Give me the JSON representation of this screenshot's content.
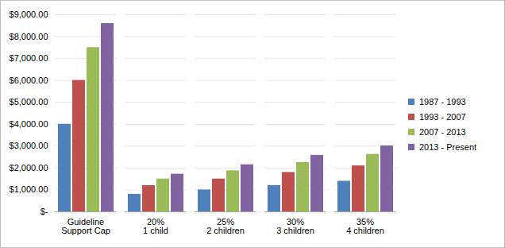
{
  "chart_data": {
    "type": "bar",
    "categories": [
      "Guideline\nSupport Cap",
      "20%\n1 child",
      "25%\n2 children",
      "30%\n3 children",
      "35%\n4 children"
    ],
    "series": [
      {
        "name": "1987 - 1993",
        "color": "#4f81bd",
        "values": [
          4000,
          800,
          1000,
          1200,
          1400
        ]
      },
      {
        "name": "1993 - 2007",
        "color": "#c0504d",
        "values": [
          6000,
          1200,
          1500,
          1800,
          2100
        ]
      },
      {
        "name": "2007 - 2013",
        "color": "#9bbb59",
        "values": [
          7500,
          1500,
          1875,
          2250,
          2625
        ]
      },
      {
        "name": "2013 - Present",
        "color": "#8064a2",
        "values": [
          8600,
          1720,
          2150,
          2580,
          3010
        ]
      }
    ],
    "ylim": [
      0,
      9000
    ],
    "yticks": [
      {
        "value": 0,
        "label": "$-"
      },
      {
        "value": 1000,
        "label": "$1,000.00"
      },
      {
        "value": 2000,
        "label": "$2,000.00"
      },
      {
        "value": 3000,
        "label": "$3,000.00"
      },
      {
        "value": 4000,
        "label": "$4,000.00"
      },
      {
        "value": 5000,
        "label": "$5,000.00"
      },
      {
        "value": 6000,
        "label": "$6,000.00"
      },
      {
        "value": 7000,
        "label": "$7,000.00"
      },
      {
        "value": 8000,
        "label": "$8,000.00"
      },
      {
        "value": 9000,
        "label": "$9,000.00"
      }
    ],
    "grid": true,
    "legend": "right"
  }
}
